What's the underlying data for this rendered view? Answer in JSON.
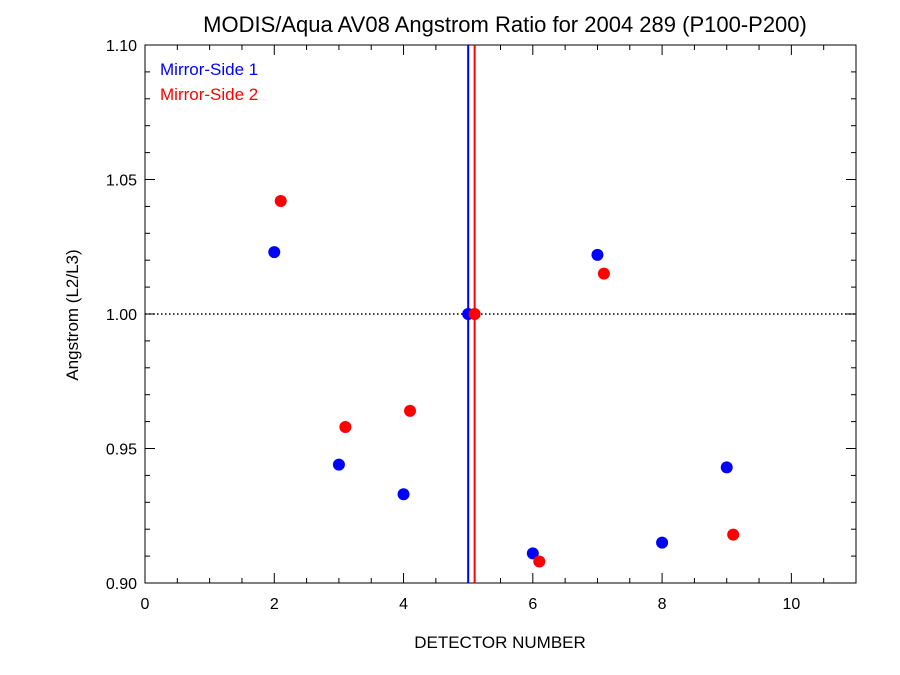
{
  "colors": {
    "mirror_side_1": "#0000ff",
    "mirror_side_2": "#ff0000",
    "axis": "#000000",
    "background": "#ffffff"
  },
  "chart_data": {
    "type": "scatter",
    "title": "MODIS/Aqua AV08 Angstrom Ratio for 2004 289 (P100-P200)",
    "xlabel": "DETECTOR NUMBER",
    "ylabel": "Angstrom (L2/L3)",
    "xlim": [
      0,
      11
    ],
    "ylim": [
      0.9,
      1.1
    ],
    "x_ticks": [
      0,
      2,
      4,
      6,
      8,
      10
    ],
    "x_tick_labels": [
      "0",
      "2",
      "4",
      "6",
      "8",
      "10"
    ],
    "y_ticks": [
      0.9,
      0.95,
      1.0,
      1.05,
      1.1
    ],
    "y_tick_labels": [
      "0.90",
      "0.95",
      "1.00",
      "1.05",
      "1.10"
    ],
    "reference_hline": 1.0,
    "reference_vlines": [
      {
        "x": 5.0,
        "series": "Mirror-Side 1"
      },
      {
        "x": 5.1,
        "series": "Mirror-Side 2"
      }
    ],
    "legend_position": "top-left",
    "grid": false,
    "series": [
      {
        "name": "Mirror-Side 1",
        "color": "#0000ff",
        "x": [
          2,
          3,
          4,
          5,
          6,
          7,
          8,
          9
        ],
        "y": [
          1.023,
          0.944,
          0.933,
          1.0,
          0.911,
          1.022,
          0.915,
          0.943
        ]
      },
      {
        "name": "Mirror-Side 2",
        "color": "#ff0000",
        "x": [
          2.1,
          3.1,
          4.1,
          5.1,
          6.1,
          7.1,
          8.1,
          9.1
        ],
        "y": [
          1.042,
          0.958,
          0.964,
          1.0,
          0.908,
          1.015,
          null,
          0.918
        ]
      }
    ]
  }
}
